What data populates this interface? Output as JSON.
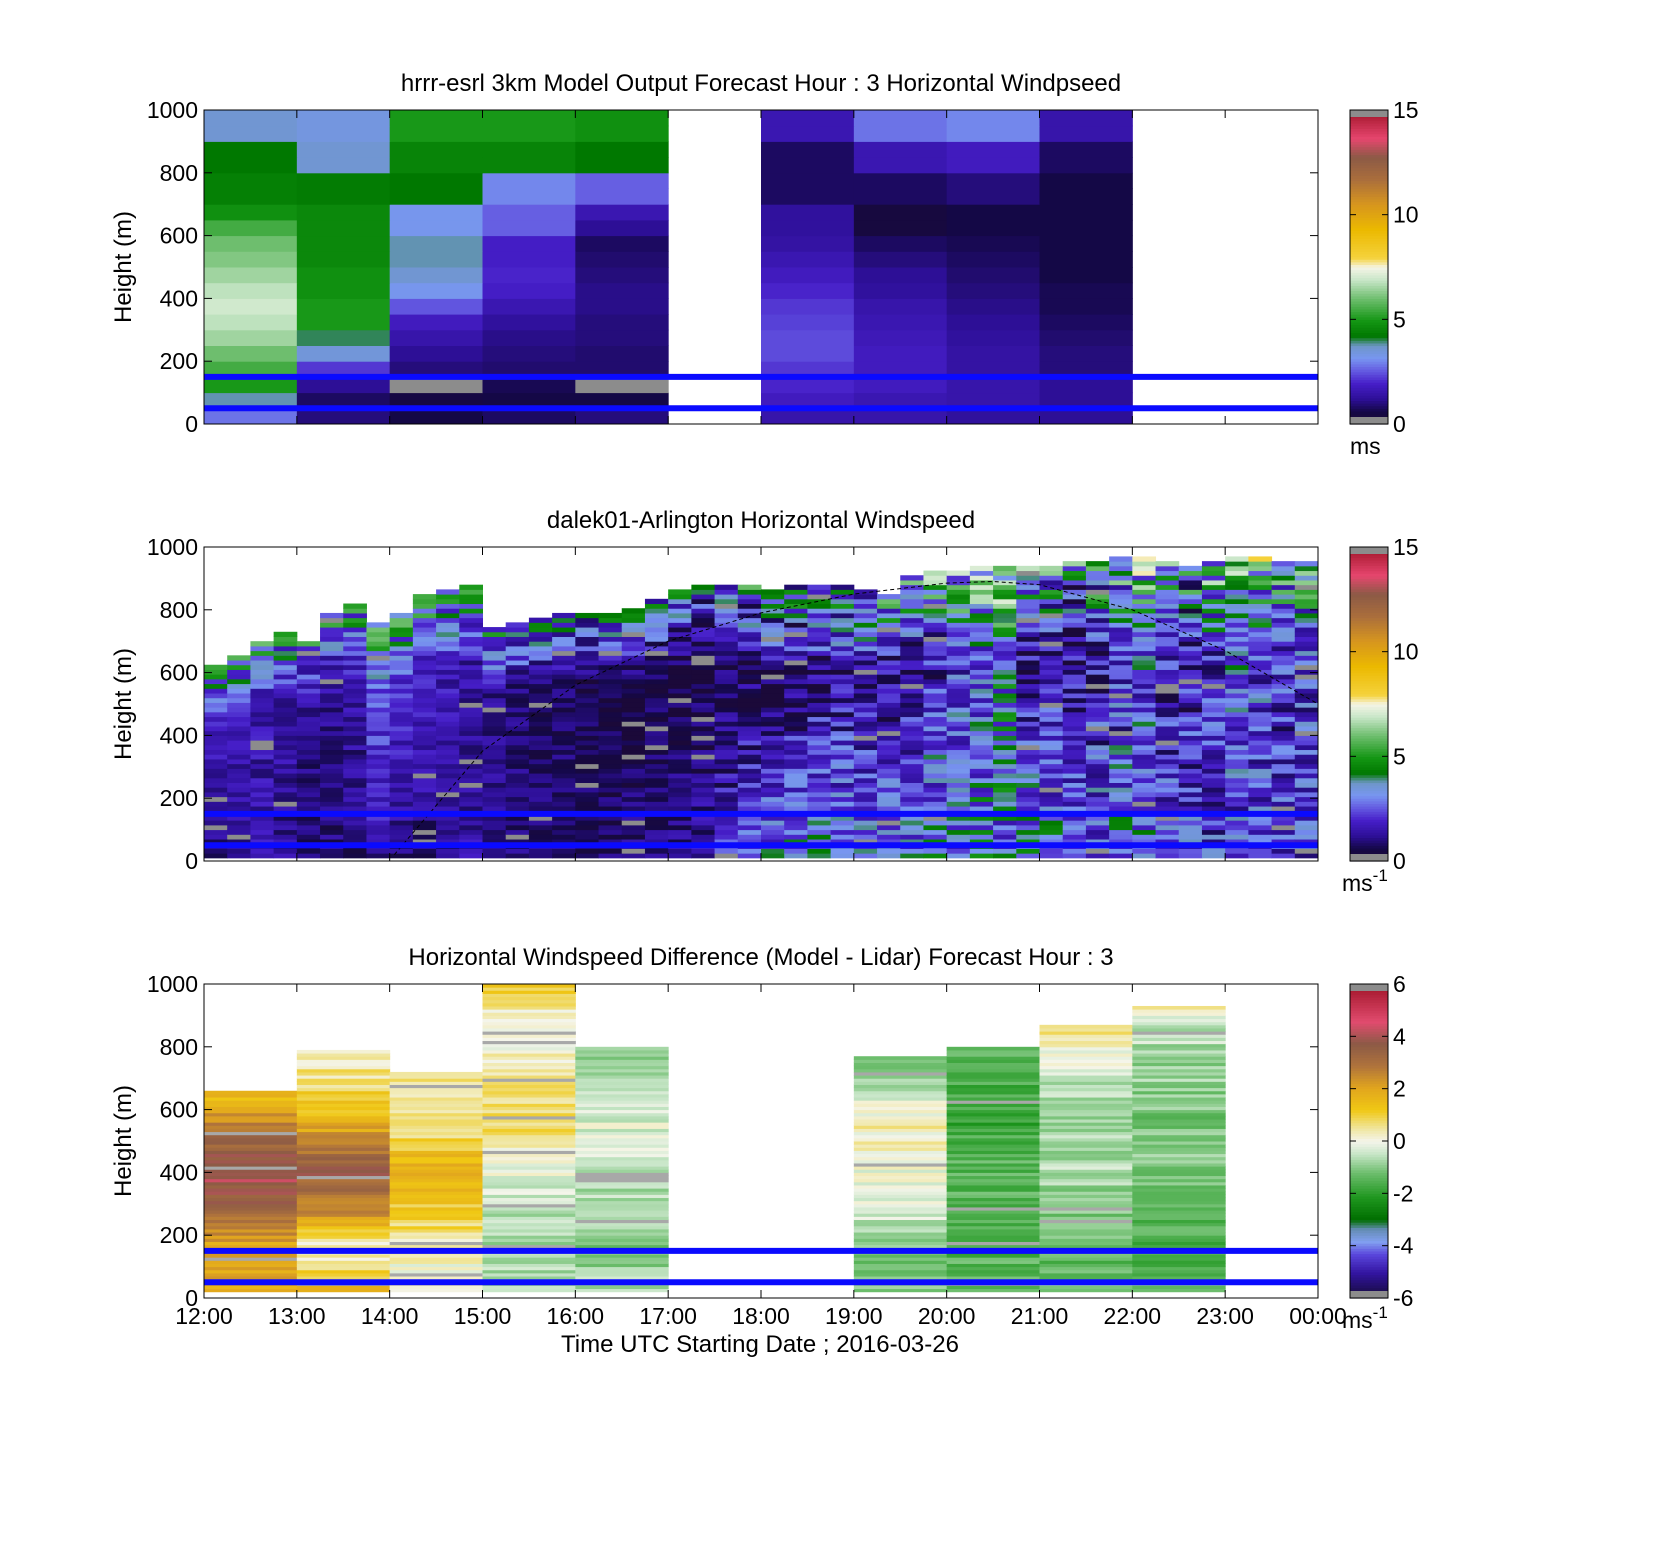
{
  "chart_data": [
    {
      "type": "heatmap",
      "title": "hrrr-esrl 3km Model Output   Forecast Hour : 3 Horizontal Windpseed",
      "ylabel": "Height (m)",
      "ylim": [
        0,
        1000
      ],
      "yticks": [
        "0",
        "200",
        "400",
        "600",
        "800",
        "1000"
      ],
      "xlim_hours": [
        12,
        24
      ],
      "x_hours": [
        12,
        13,
        14,
        15,
        16,
        18,
        19,
        20,
        21
      ],
      "bin_hours": 1,
      "heights_m": [
        25,
        75,
        125,
        175,
        225,
        275,
        325,
        375,
        425,
        475,
        525,
        575,
        625,
        675,
        725,
        775,
        825,
        875,
        925,
        975
      ],
      "values": [
        [
          2.8,
          1.0,
          0.6,
          0.8,
          1.0,
          1.5,
          1.5,
          1.3,
          1.2
        ],
        [
          3.8,
          0.8,
          0.5,
          0.6,
          0.6,
          1.8,
          1.6,
          1.5,
          1.2
        ],
        [
          5.0,
          1.2,
          -1,
          0.7,
          -1,
          2.0,
          1.8,
          1.5,
          1.2
        ],
        [
          5.5,
          2.2,
          1.0,
          0.9,
          0.9,
          2.2,
          1.8,
          1.4,
          1.0
        ],
        [
          6.0,
          3.5,
          1.2,
          1.0,
          0.9,
          2.4,
          1.8,
          1.4,
          1.0
        ],
        [
          6.5,
          4.0,
          1.5,
          1.1,
          1.0,
          2.4,
          1.7,
          1.3,
          0.9
        ],
        [
          6.8,
          5.0,
          1.8,
          1.3,
          1.0,
          2.3,
          1.6,
          1.2,
          0.8
        ],
        [
          7.0,
          5.0,
          2.5,
          1.6,
          1.1,
          2.2,
          1.5,
          1.1,
          0.7
        ],
        [
          6.8,
          4.8,
          3.2,
          1.9,
          1.1,
          2.0,
          1.3,
          1.0,
          0.7
        ],
        [
          6.5,
          4.8,
          3.6,
          2.0,
          1.0,
          1.8,
          1.2,
          0.9,
          0.6
        ],
        [
          6.2,
          4.6,
          3.8,
          1.9,
          0.9,
          1.6,
          1.0,
          0.8,
          0.6
        ],
        [
          6.0,
          4.6,
          3.8,
          1.9,
          0.8,
          1.4,
          0.8,
          0.7,
          0.6
        ],
        [
          5.5,
          4.6,
          3.2,
          2.6,
          1.2,
          1.3,
          0.4,
          0.6,
          0.6
        ],
        [
          4.8,
          4.6,
          3.2,
          2.6,
          1.6,
          1.3,
          0.4,
          0.6,
          0.6
        ],
        [
          4.4,
          4.3,
          4.2,
          3.0,
          2.6,
          0.8,
          0.8,
          1.0,
          0.6
        ],
        [
          4.4,
          4.3,
          4.2,
          3.0,
          2.6,
          0.8,
          0.8,
          1.0,
          0.6
        ],
        [
          4.2,
          3.6,
          4.5,
          4.5,
          4.2,
          0.8,
          1.6,
          1.8,
          0.8
        ],
        [
          4.2,
          3.6,
          4.5,
          4.5,
          4.2,
          0.8,
          1.6,
          1.8,
          0.8
        ],
        [
          3.6,
          3.4,
          5.0,
          5.0,
          4.8,
          1.6,
          2.8,
          3.0,
          1.5
        ],
        [
          3.6,
          3.4,
          5.0,
          5.0,
          4.8,
          1.6,
          2.8,
          3.0,
          1.5
        ]
      ],
      "missing_value": -1,
      "colorbar": {
        "min": 0,
        "max": 15,
        "ticks": [
          "0",
          "5",
          "10",
          "15"
        ],
        "unit": "ms"
      },
      "reference_lines_m": [
        50,
        150
      ]
    },
    {
      "type": "heatmap",
      "title": "dalek01-Arlington  Horizontal Windspeed",
      "ylabel": "Height (m)",
      "ylim": [
        0,
        1000
      ],
      "yticks": [
        "0",
        "200",
        "400",
        "600",
        "800",
        "1000"
      ],
      "xlim_hours": [
        12,
        24
      ],
      "start_hour": 12,
      "end_hour": 23.95,
      "bin_hours": 0.25,
      "profile_top_m": [
        620,
        650,
        700,
        720,
        700,
        780,
        810,
        760,
        790,
        840,
        860,
        880,
        740,
        760,
        770,
        790,
        790,
        780,
        800,
        830,
        860,
        880,
        880,
        870,
        860,
        870,
        880,
        880,
        860,
        850,
        900,
        920,
        920,
        930,
        940,
        930,
        940,
        950,
        950,
        960,
        960,
        950,
        940,
        950,
        960,
        960,
        950,
        950
      ],
      "surface_mean_ms": [
        1.0,
        1.2,
        1.5,
        1.2,
        0.8,
        0.9,
        1.0,
        1.3,
        1.1,
        1.0,
        1.2,
        1.4,
        1.1,
        1.0,
        0.9,
        1.0,
        0.8,
        0.9,
        1.1,
        1.0,
        1.2,
        1.5,
        2.0,
        2.6,
        3.0,
        3.2,
        3.5,
        3.0,
        3.2,
        3.4,
        3.1,
        3.6,
        3.0,
        3.4,
        3.2,
        3.8,
        3.5,
        3.3,
        3.0,
        3.2,
        3.1,
        2.8,
        2.6,
        2.2,
        2.4,
        2.2,
        2.0,
        2.2
      ],
      "upper_mean_ms": [
        1.8,
        1.6,
        1.5,
        1.4,
        1.2,
        1.3,
        1.4,
        2.4,
        2.0,
        1.8,
        1.6,
        1.4,
        1.2,
        1.0,
        0.8,
        0.8,
        0.6,
        0.5,
        0.5,
        0.6,
        0.5,
        0.6,
        0.7,
        0.8,
        0.8,
        0.9,
        1.1,
        1.4,
        1.3,
        1.2,
        1.6,
        1.8,
        2.4,
        2.6,
        3.4,
        1.4,
        1.2,
        1.0,
        1.6,
        2.0,
        2.6,
        1.6,
        1.4,
        2.2,
        2.8,
        2.4,
        1.9,
        2.3
      ],
      "variability_ms": [
        0.5,
        0.5,
        0.6,
        0.6,
        0.5,
        0.6,
        0.6,
        0.7,
        0.6,
        0.6,
        0.6,
        0.6,
        0.5,
        0.5,
        0.5,
        0.5,
        0.5,
        0.5,
        0.6,
        0.6,
        0.7,
        0.8,
        1.0,
        1.1,
        1.2,
        1.2,
        1.3,
        1.3,
        1.2,
        1.3,
        1.4,
        1.5,
        1.5,
        1.6,
        1.7,
        1.5,
        1.5,
        1.5,
        1.6,
        1.6,
        1.6,
        1.5,
        1.5,
        1.5,
        1.6,
        1.5,
        1.5,
        1.5
      ],
      "colorbar": {
        "min": 0,
        "max": 15,
        "ticks": [
          "0",
          "5",
          "10",
          "15"
        ],
        "unit": "ms",
        "unit_exp": "-1"
      },
      "reference_lines_m": [
        50,
        150
      ],
      "boundary_layer_curve": {
        "hours": [
          14.05,
          15,
          16,
          17,
          18,
          19,
          20,
          20.5,
          21,
          22,
          23,
          24
        ],
        "heights_m": [
          20,
          350,
          560,
          700,
          790,
          850,
          885,
          890,
          880,
          800,
          670,
          500
        ]
      }
    },
    {
      "type": "heatmap",
      "title": "Horizontal Windspeed Difference (Model - Lidar) Forecast Hour : 3",
      "xlabel": "Time UTC  Starting Date ; 2016-03-26",
      "ylabel": "Height (m)",
      "ylim": [
        0,
        1000
      ],
      "yticks": [
        "0",
        "200",
        "400",
        "600",
        "800",
        "1000"
      ],
      "xlim_hours": [
        12,
        24
      ],
      "xticks": [
        "12:00",
        "13:00",
        "14:00",
        "15:00",
        "16:00",
        "17:00",
        "18:00",
        "19:00",
        "20:00",
        "21:00",
        "22:00",
        "23:00",
        "00:00"
      ],
      "bin_hours": 1,
      "column_start_hours": [
        12,
        13,
        14,
        15,
        16,
        19,
        20,
        21,
        22
      ],
      "column_top_m": [
        660,
        790,
        720,
        1000,
        795,
        765,
        795,
        870,
        930
      ],
      "column_profiles": [
        {
          "h": [
            25,
            150,
            250,
            400,
            550,
            640
          ],
          "v": [
            2.0,
            1.8,
            3.0,
            4.2,
            2.6,
            1.4
          ]
        },
        {
          "h": [
            25,
            150,
            250,
            400,
            550,
            700,
            780
          ],
          "v": [
            1.5,
            0.0,
            2.2,
            3.6,
            1.8,
            0.6,
            0.3
          ]
        },
        {
          "h": [
            25,
            150,
            250,
            400,
            550,
            700
          ],
          "v": [
            0.2,
            0.1,
            1.0,
            1.8,
            0.5,
            0.8
          ]
        },
        {
          "h": [
            25,
            150,
            250,
            400,
            550,
            700,
            850,
            990
          ],
          "v": [
            -0.4,
            -0.8,
            -0.6,
            -0.1,
            0.8,
            0.6,
            -0.2,
            1.0
          ]
        },
        {
          "h": [
            25,
            150,
            250,
            400,
            550,
            700,
            790
          ],
          "v": [
            -0.6,
            -1.0,
            -0.8,
            -0.5,
            -0.2,
            -1.0,
            -1.2
          ]
        },
        {
          "h": [
            25,
            150,
            250,
            400,
            550,
            700,
            760
          ],
          "v": [
            -1.0,
            -1.2,
            -0.4,
            0.0,
            0.3,
            -1.0,
            -1.2
          ]
        },
        {
          "h": [
            25,
            150,
            250,
            400,
            550,
            700,
            790
          ],
          "v": [
            -1.2,
            -1.5,
            -1.6,
            -1.4,
            -1.8,
            -1.6,
            -1.4
          ]
        },
        {
          "h": [
            25,
            150,
            250,
            400,
            550,
            700,
            800,
            860
          ],
          "v": [
            -1.2,
            -1.4,
            -1.2,
            -0.6,
            -0.8,
            -0.5,
            0.3,
            0.5
          ]
        },
        {
          "h": [
            25,
            150,
            250,
            400,
            550,
            700,
            850,
            920
          ],
          "v": [
            -1.3,
            -1.6,
            -1.4,
            -1.0,
            -1.2,
            -0.9,
            -0.5,
            0.2
          ]
        }
      ],
      "colorbar": {
        "min": -6,
        "max": 6,
        "ticks": [
          "-6",
          "-4",
          "-2",
          "0",
          "2",
          "4",
          "6"
        ],
        "unit": "ms",
        "unit_exp": "-1"
      },
      "reference_lines_m": [
        50,
        150
      ]
    }
  ],
  "colors": {
    "reference_line": "#0a0aff",
    "missing": "#8c8c8c",
    "speed_colormap": [
      "#3a0b5c",
      "#1e0a5a",
      "#3a16b4",
      "#5a3ad8",
      "#7aa8f0",
      "#0a7a0a",
      "#2aa82a",
      "#8fd08f",
      "#f0f0e0",
      "#f0c800",
      "#e0a020",
      "#a07040",
      "#e05070",
      "#a01020"
    ]
  }
}
